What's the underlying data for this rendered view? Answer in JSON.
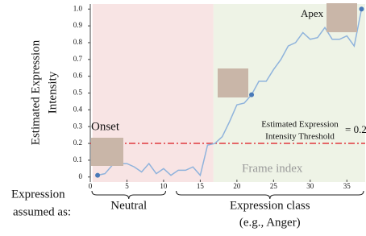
{
  "chart_data": {
    "type": "line",
    "y_label": [
      "Estimated Expression",
      "Intensity"
    ],
    "x_annotation": "Frame index",
    "x": [
      1,
      2,
      3,
      4,
      5,
      6,
      7,
      8,
      9,
      10,
      11,
      12,
      13,
      14,
      15,
      16,
      17,
      18,
      19,
      20,
      21,
      22,
      23,
      24,
      25,
      26,
      27,
      28,
      29,
      30,
      31,
      32,
      33,
      34,
      35,
      36,
      37
    ],
    "series": [
      {
        "color": "#8fb3dc",
        "values": [
          0.01,
          0.02,
          0.07,
          0.08,
          0.08,
          0.06,
          0.03,
          0.08,
          0.02,
          0.05,
          0.01,
          0.04,
          0.04,
          0.06,
          0.01,
          0.19,
          0.2,
          0.24,
          0.33,
          0.43,
          0.44,
          0.49,
          0.57,
          0.57,
          0.64,
          0.7,
          0.78,
          0.8,
          0.86,
          0.82,
          0.83,
          0.89,
          0.82,
          0.82,
          0.84,
          0.78,
          1
        ]
      }
    ],
    "marker_color": "#4a7ab8",
    "markers_at_x": [
      1,
      22,
      37
    ],
    "xlim": [
      0,
      37.5
    ],
    "ylim": [
      -0.03,
      1.03
    ],
    "xticks": [
      0,
      5,
      10,
      15,
      20,
      25,
      30,
      35
    ],
    "yticks": [
      0,
      {
        "value": 0.1,
        "label": "0.1"
      },
      0.2,
      0.3,
      0.4,
      0.5,
      0.6,
      0.7,
      0.8,
      0.9,
      {
        "value": 1,
        "label": "1.0"
      }
    ],
    "regions": [
      {
        "start": 0.3,
        "end": 16.8,
        "color": "#f8e4e4"
      },
      {
        "start": 16.8,
        "end": 37.5,
        "color": "#eef3e6"
      }
    ],
    "threshold": {
      "value": 0.2,
      "label": "= 0.2",
      "color": "#e0393e",
      "text": [
        "Estimated Expression",
        "Intensity Threshold"
      ]
    },
    "annotations": [
      {
        "text": "Onset"
      },
      {
        "text": "Apex"
      }
    ],
    "phase_caption": [
      "Expression",
      "assumed as:"
    ],
    "phases": [
      {
        "label": [
          "Neutral"
        ],
        "start": 0,
        "end": 10.5
      },
      {
        "label": [
          "Expression class",
          "(e.g., Anger)"
        ],
        "start": 11.5,
        "end": 37.5
      }
    ]
  }
}
